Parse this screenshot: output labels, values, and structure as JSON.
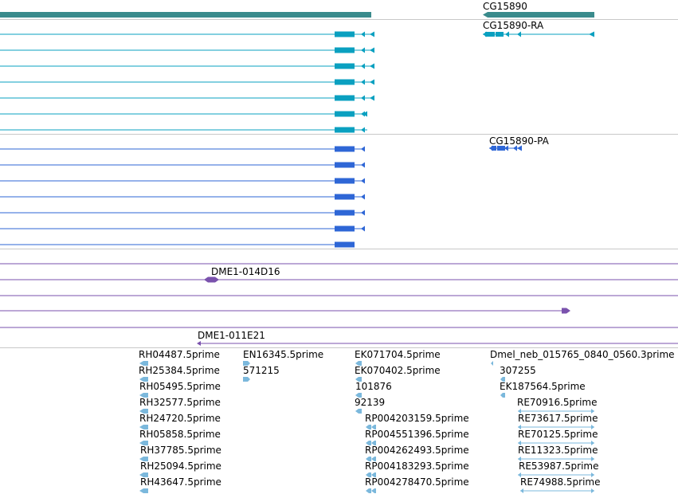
{
  "colors": {
    "gene": "#3a8b8c",
    "mrna_ra": "#0aa0c0",
    "mrna_pa": "#2e66d6",
    "clone": "#7a52ad",
    "est": "#7bb8dc",
    "separator": "#c8c8c8"
  },
  "gene_track": {
    "feature_label": "CG15890",
    "transcript_label": "CG15890-RA"
  },
  "protein_track": {
    "feature_label": "CG15890-PA"
  },
  "clone_track": {
    "clone_a_label": "DME1-014D16",
    "clone_b_label": "DME1-011E21"
  },
  "est_track": {
    "col1": [
      "RH04487.5prime",
      "RH25384.5prime",
      "RH05495.5prime",
      "RH32577.5prime",
      "RH24720.5prime",
      "RH05858.5prime",
      "RH37785.5prime",
      "RH25094.5prime",
      "RH43647.5prime"
    ],
    "col2": [
      "EN16345.5prime",
      "571215"
    ],
    "col3": [
      "EK071704.5prime",
      "EK070402.5prime",
      "101876",
      "92139",
      "RP004203159.5prime",
      "RP004551396.5prime",
      "RP004262493.5prime",
      "RP004183293.5prime",
      "RP004278470.5prime"
    ],
    "col4": [
      "Dmel_neb_015765_0840_0560.3prime",
      "307255",
      "EK187564.5prime",
      "RE70916.5prime",
      "RE73617.5prime",
      "RE70125.5prime",
      "RE11323.5prime",
      "RE53987.5prime",
      "RE74988.5prime"
    ]
  }
}
